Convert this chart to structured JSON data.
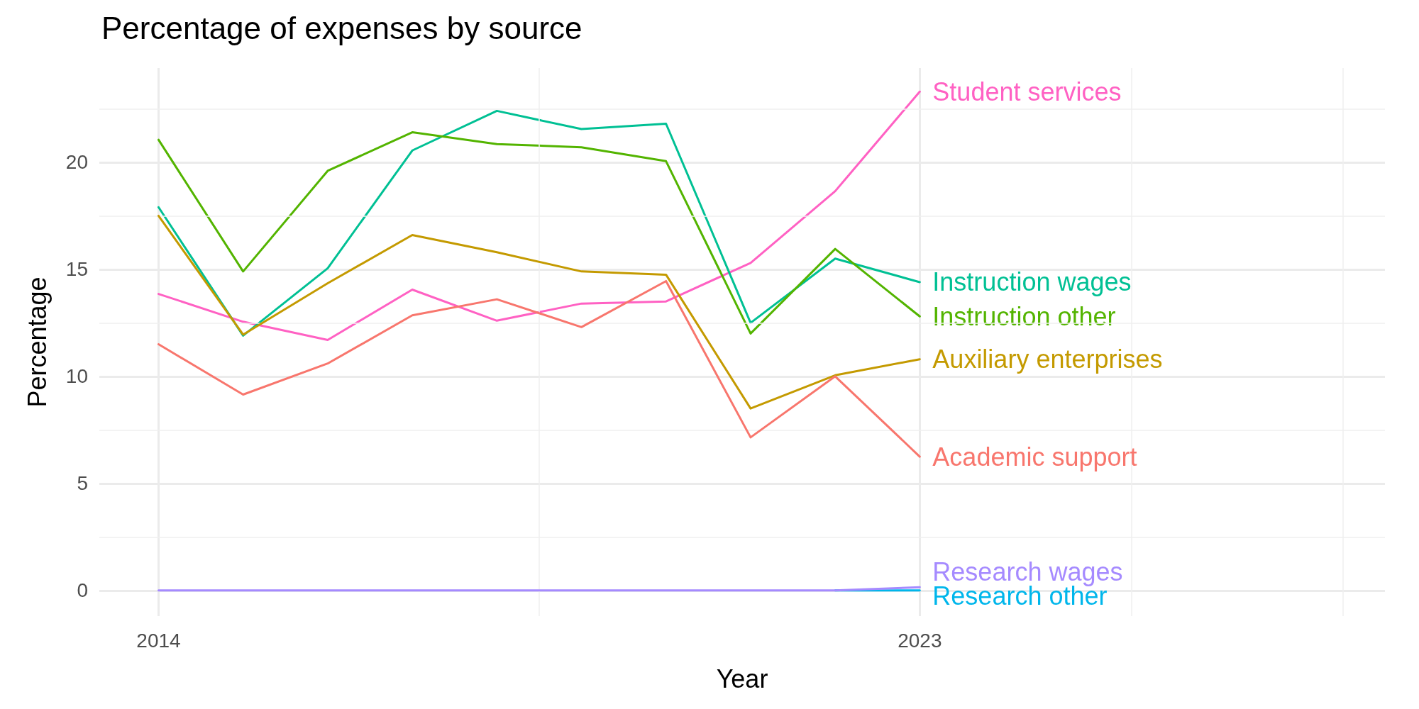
{
  "chart_data": {
    "type": "line",
    "title": "Percentage of expenses by source",
    "xlabel": "Year",
    "ylabel": "Percentage",
    "x": [
      2014,
      2015,
      2016,
      2017,
      2018,
      2019,
      2020,
      2021,
      2022,
      2023
    ],
    "xlim": [
      2013.3,
      2028.5
    ],
    "xticks": [
      2014,
      {
        "value": 2018.5,
        "label": null
      },
      2023,
      {
        "value": 2025.5,
        "label": null
      },
      {
        "value": 2028,
        "label": null
      }
    ],
    "ylim": [
      -1.2,
      24.4
    ],
    "yticks": [
      0,
      {
        "value": 2.5,
        "label": null
      },
      5,
      {
        "value": 7.5,
        "label": null
      },
      10,
      {
        "value": 12.5,
        "label": null
      },
      15,
      {
        "value": 17.5,
        "label": null
      },
      20,
      {
        "value": 22.5,
        "label": null
      }
    ],
    "grid": true,
    "legend": false,
    "marker": "none",
    "line_style": "solid",
    "series": [
      {
        "name": "Student services",
        "color": "#ff61c3",
        "values": [
          13.85,
          12.55,
          11.7,
          14.05,
          12.6,
          13.4,
          13.5,
          15.3,
          18.65,
          23.3
        ]
      },
      {
        "name": "Instruction wages",
        "color": "#00c094",
        "values": [
          17.9,
          11.9,
          15.05,
          20.55,
          22.4,
          21.55,
          21.8,
          12.5,
          15.5,
          14.4
        ]
      },
      {
        "name": "Instruction other",
        "color": "#53b400",
        "values": [
          21.05,
          14.9,
          19.6,
          21.4,
          20.85,
          20.7,
          20.05,
          12.0,
          15.95,
          12.8
        ]
      },
      {
        "name": "Auxiliary enterprises",
        "color": "#c49a00",
        "values": [
          17.5,
          11.95,
          14.35,
          16.6,
          15.8,
          14.9,
          14.75,
          8.5,
          10.05,
          10.8
        ]
      },
      {
        "name": "Academic support",
        "color": "#f8766d",
        "values": [
          11.5,
          9.15,
          10.6,
          12.85,
          13.6,
          12.3,
          14.45,
          7.15,
          10.0,
          6.25
        ]
      },
      {
        "name": "Research other",
        "color": "#00b6eb",
        "values": [
          null,
          null,
          null,
          null,
          null,
          null,
          null,
          null,
          0,
          0
        ]
      },
      {
        "name": "Research wages",
        "color": "#a58aff",
        "values": [
          0,
          0,
          0,
          0,
          0,
          0,
          0,
          0,
          0,
          0.15
        ]
      }
    ]
  }
}
